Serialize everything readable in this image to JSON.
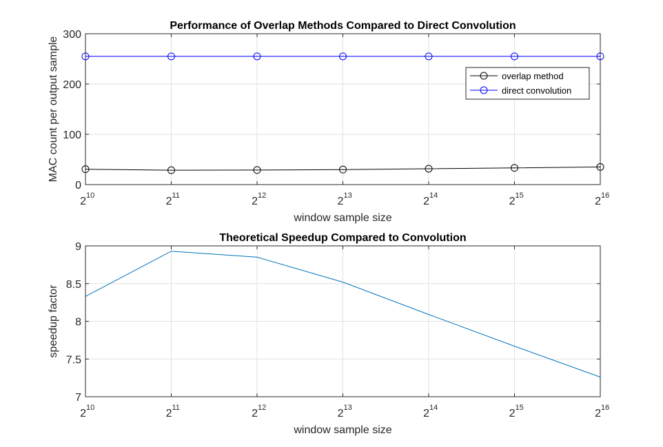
{
  "chart_data": [
    {
      "type": "line",
      "title": "Performance of Overlap Methods Compared to Direct Convolution",
      "xlabel": "window sample size",
      "ylabel": "MAC count per output sample",
      "x": [
        1024,
        2048,
        4096,
        8192,
        16384,
        32768,
        65536
      ],
      "x_tick_base": "2",
      "x_tick_exponents": [
        "10",
        "11",
        "12",
        "13",
        "14",
        "15",
        "16"
      ],
      "xscale": "log2",
      "ylim": [
        0,
        300
      ],
      "yticks": [
        "0",
        "100",
        "200",
        "300"
      ],
      "grid": true,
      "legend_position": "right",
      "series": [
        {
          "name": "overlap method",
          "values": [
            30.6,
            28.6,
            28.9,
            29.9,
            31.5,
            33.2,
            35.1
          ],
          "color": "#000000",
          "marker": "circle"
        },
        {
          "name": "direct convolution",
          "values": [
            255,
            255,
            255,
            255,
            255,
            255,
            255
          ],
          "color": "#0000ff",
          "marker": "circle"
        }
      ]
    },
    {
      "type": "line",
      "title": "Theoretical Speedup Compared to Convolution",
      "xlabel": "window sample size",
      "ylabel": "speedup factor",
      "x": [
        1024,
        2048,
        4096,
        8192,
        16384,
        32768,
        65536
      ],
      "x_tick_base": "2",
      "x_tick_exponents": [
        "10",
        "11",
        "12",
        "13",
        "14",
        "15",
        "16"
      ],
      "xscale": "log2",
      "ylim": [
        7,
        9
      ],
      "yticks": [
        "7",
        "7.5",
        "8",
        "8.5",
        "9"
      ],
      "grid": true,
      "series": [
        {
          "values": [
            8.33,
            8.93,
            8.85,
            8.52,
            8.09,
            7.67,
            7.26
          ],
          "color": "#0072bd"
        }
      ]
    }
  ]
}
